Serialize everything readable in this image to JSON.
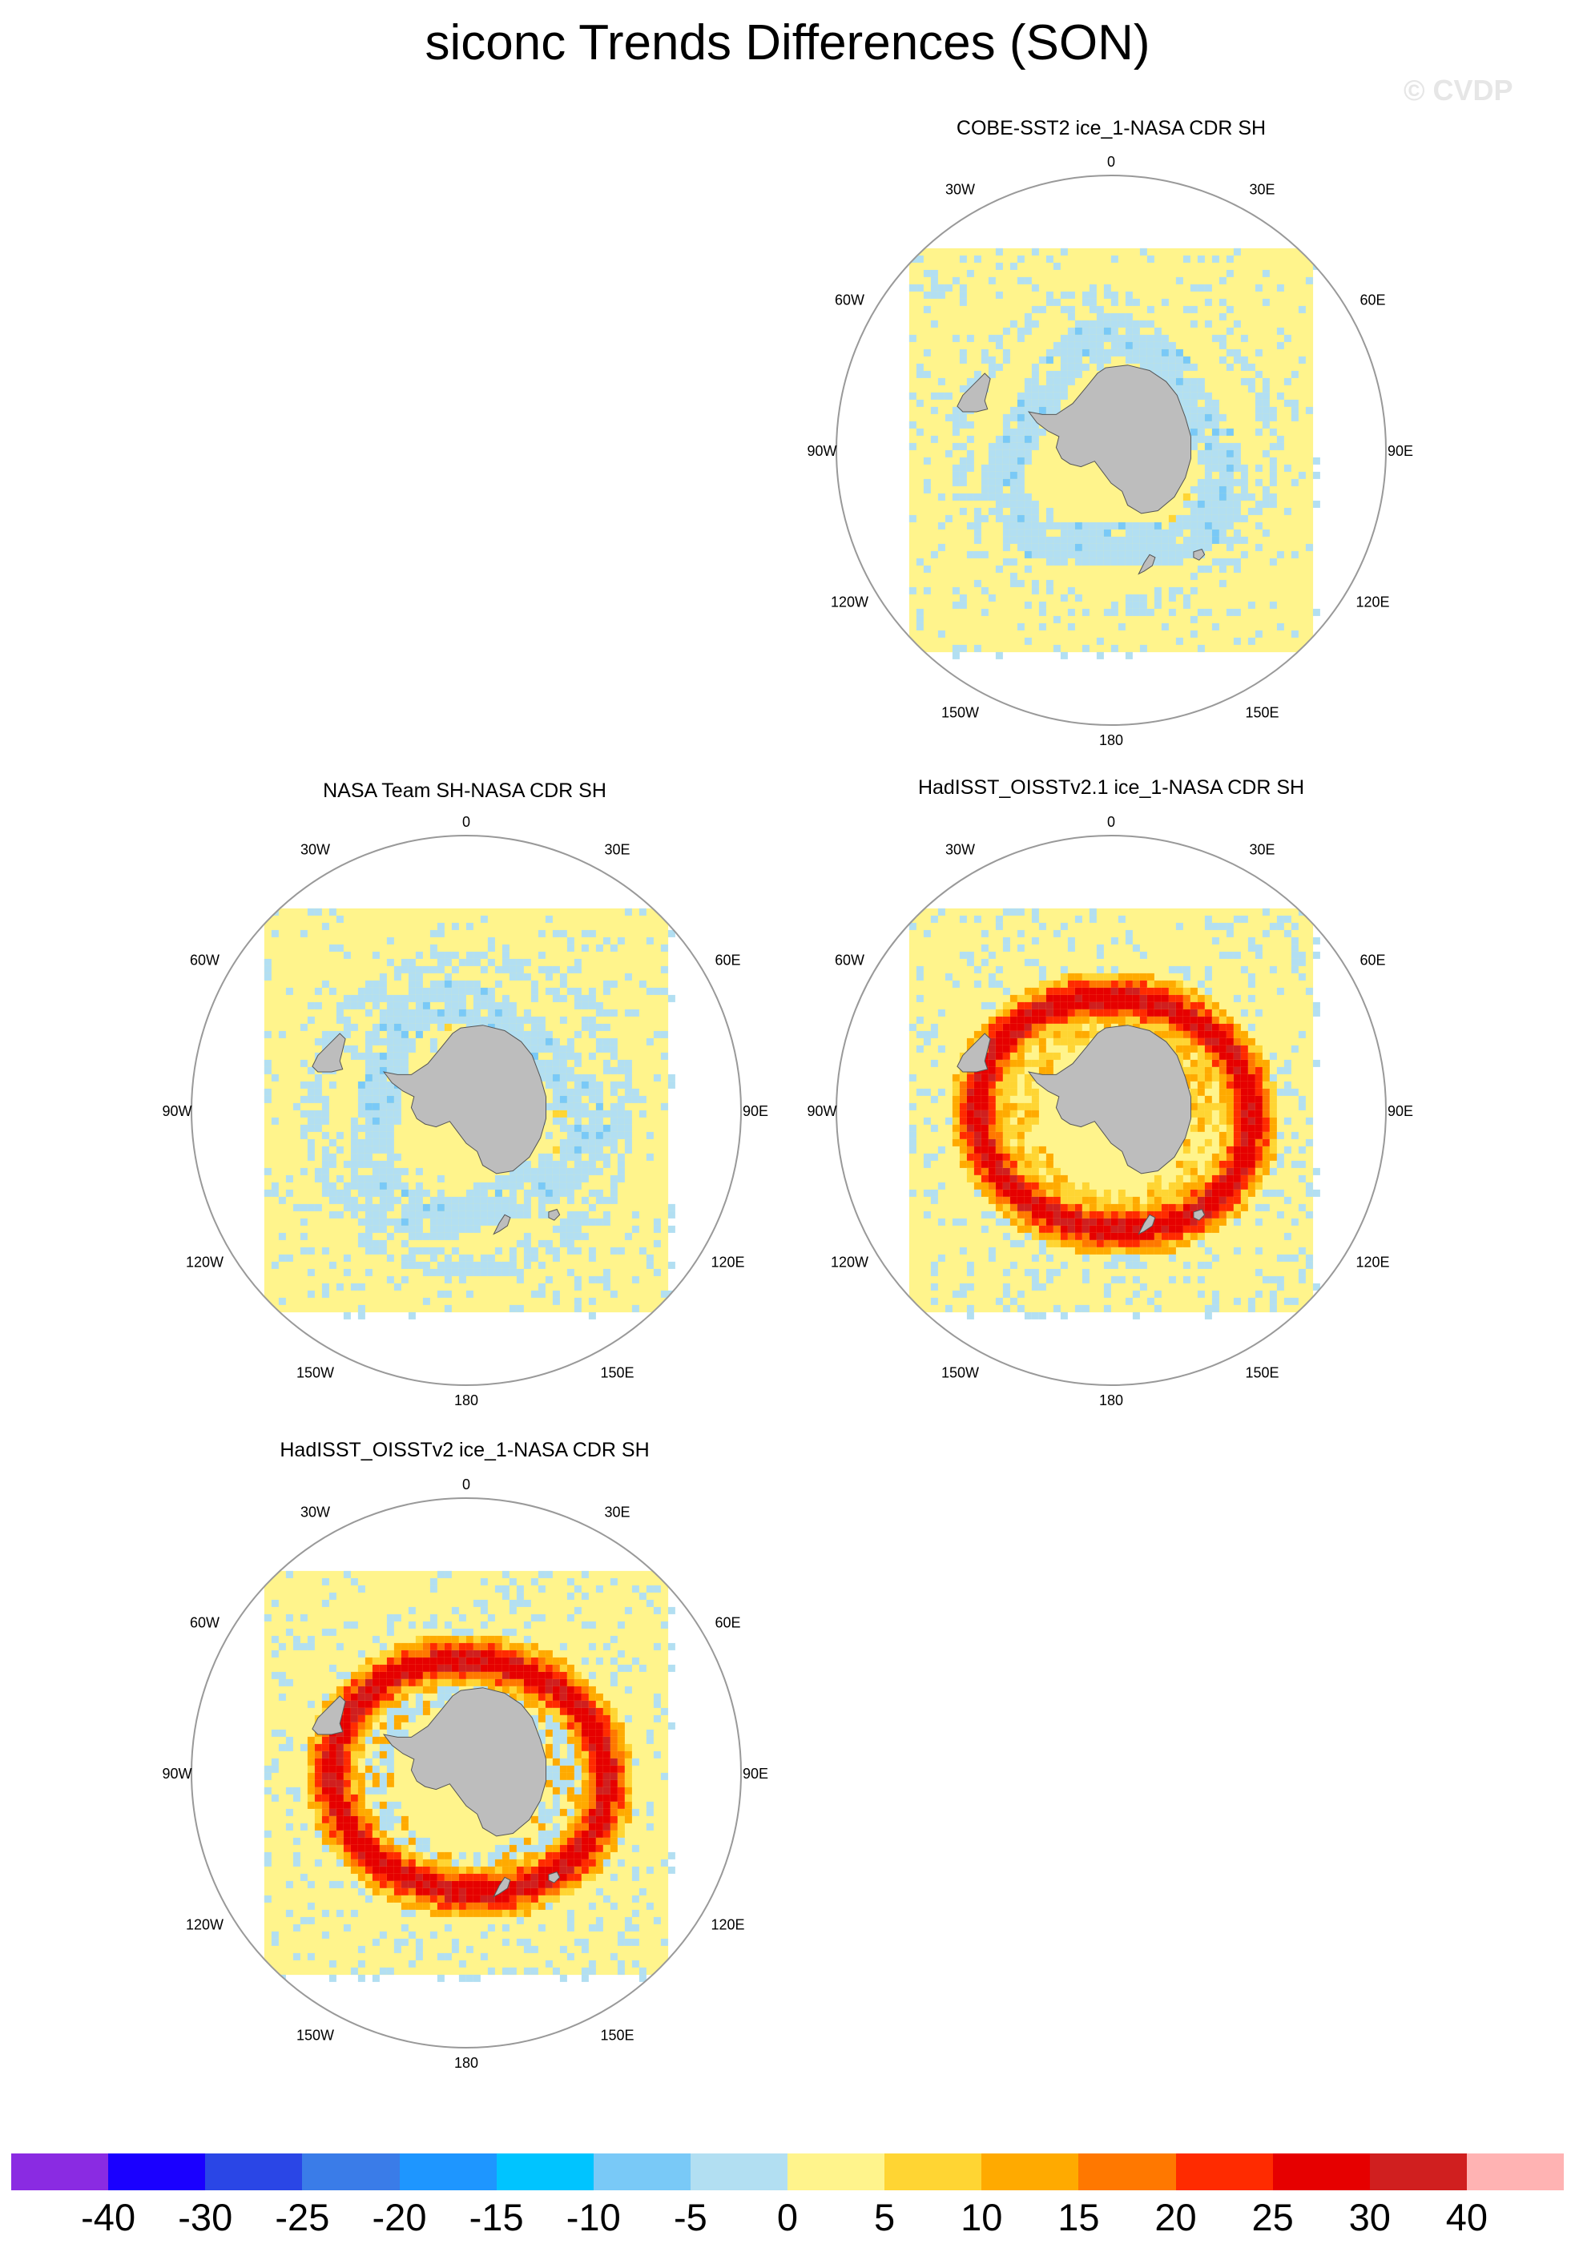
{
  "title": "siconc Trends Differences (SON)",
  "watermark": "© CVDP",
  "projection": "south-polar-stereographic",
  "longitude_labels": [
    "0",
    "30E",
    "60E",
    "90E",
    "120E",
    "150E",
    "180",
    "150W",
    "120W",
    "90W",
    "60W",
    "30W"
  ],
  "panels": [
    {
      "id": "cobe",
      "title": "COBE-SST2 ice_1-NASA CDR SH",
      "pattern": "mostly-small-differences"
    },
    {
      "id": "nasateam",
      "title": "NASA Team SH-NASA CDR SH",
      "pattern": "mostly-small-differences"
    },
    {
      "id": "hadoi21",
      "title": "HadISST_OISSTv2.1 ice_1-NASA CDR SH",
      "pattern": "strong-positive-ring"
    },
    {
      "id": "hadoi2",
      "title": "HadISST_OISSTv2 ice_1-NASA CDR SH",
      "pattern": "strong-positive-ring"
    }
  ],
  "colorbar": {
    "colors": [
      "#8a2be2",
      "#1a00ff",
      "#2a46e6",
      "#3a7ce8",
      "#1e96ff",
      "#00c4ff",
      "#79c9f7",
      "#b2dff2",
      "#fff48c",
      "#ffd533",
      "#ffaa00",
      "#ff7800",
      "#ff2b00",
      "#e60000",
      "#d01f1f",
      "#ffb3b3"
    ],
    "labels": [
      "-40",
      "-30",
      "-25",
      "-20",
      "-15",
      "-10",
      "-5",
      "0",
      "5",
      "10",
      "15",
      "20",
      "25",
      "30",
      "40"
    ]
  },
  "land_color": "#bdbdbd"
}
